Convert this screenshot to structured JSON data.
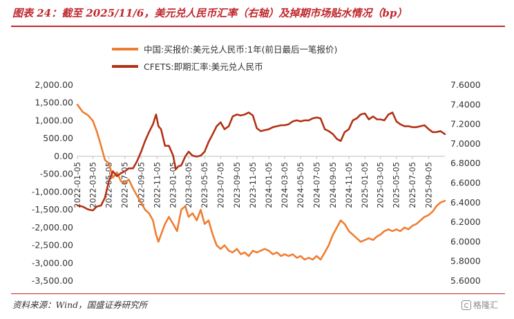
{
  "header": {
    "title": "图表 24：截至 2025/11/6，美元兑人民币汇率（右轴）及掉期市场贴水情况（bp）"
  },
  "footer": {
    "source": "资料来源：Wind，国盛证券研究所"
  },
  "watermark": {
    "text": "格隆汇"
  },
  "colors": {
    "accent": "#c0272d",
    "series_swap": "#ee7d31",
    "series_cfets": "#b23014"
  },
  "chart_data": {
    "type": "line",
    "legend_position": "top",
    "grid": false,
    "x_ticks": [
      "2022-01-05",
      "2022-03-05",
      "2022-05-05",
      "2022-07-05",
      "2022-09-05",
      "2022-11-05",
      "2023-01-05",
      "2023-03-05",
      "2023-05-05",
      "2023-07-05",
      "2023-09-05",
      "2023-11-05",
      "2024-01-05",
      "2024-03-05",
      "2024-05-05",
      "2024-07-05",
      "2024-09-05",
      "2024-11-05",
      "2025-01-05",
      "2025-03-05",
      "2025-05-05",
      "2025-07-05",
      "2025-09-05"
    ],
    "x_range": [
      "2022-01-05",
      "2025-11-06"
    ],
    "y_left": {
      "min": -3500,
      "max": 2000,
      "step": 500,
      "tick_labels": [
        "2,000.00",
        "1,500.00",
        "1,000.00",
        "500.00",
        "0.00",
        "-500.00",
        "-1,000.00",
        "-1,500.00",
        "-2,000.00",
        "-2,500.00",
        "-3,000.00",
        "-3,500.00"
      ]
    },
    "y_right": {
      "min": 5.6,
      "max": 7.6,
      "step": 0.2,
      "tick_labels": [
        "7.6000",
        "7.4000",
        "7.2000",
        "7.0000",
        "6.8000",
        "6.6000",
        "6.4000",
        "6.2000",
        "6.0000",
        "5.8000",
        "5.6000"
      ]
    },
    "series": [
      {
        "name": "中国:买报价:美元兑人民币:1年(前日最后一笔报价)",
        "axis": "left",
        "points": [
          [
            "2022-01-05",
            1450
          ],
          [
            "2022-01-25",
            1250
          ],
          [
            "2022-02-15",
            1150
          ],
          [
            "2022-03-05",
            1000
          ],
          [
            "2022-03-20",
            700
          ],
          [
            "2022-04-05",
            300
          ],
          [
            "2022-04-20",
            -100
          ],
          [
            "2022-05-05",
            -200
          ],
          [
            "2022-05-20",
            -600
          ],
          [
            "2022-06-05",
            -450
          ],
          [
            "2022-06-20",
            -700
          ],
          [
            "2022-07-05",
            -750
          ],
          [
            "2022-07-20",
            -650
          ],
          [
            "2022-08-05",
            -900
          ],
          [
            "2022-08-20",
            -1100
          ],
          [
            "2022-09-05",
            -1300
          ],
          [
            "2022-09-20",
            -1500
          ],
          [
            "2022-10-05",
            -1600
          ],
          [
            "2022-10-20",
            -1800
          ],
          [
            "2022-11-01",
            -2200
          ],
          [
            "2022-11-10",
            -2400
          ],
          [
            "2022-11-20",
            -2200
          ],
          [
            "2022-12-05",
            -1900
          ],
          [
            "2022-12-20",
            -1700
          ],
          [
            "2023-01-05",
            -1900
          ],
          [
            "2023-01-20",
            -2100
          ],
          [
            "2023-02-05",
            -1500
          ],
          [
            "2023-02-20",
            -1400
          ],
          [
            "2023-03-05",
            -1700
          ],
          [
            "2023-03-20",
            -1600
          ],
          [
            "2023-04-05",
            -1800
          ],
          [
            "2023-04-20",
            -1500
          ],
          [
            "2023-05-05",
            -1900
          ],
          [
            "2023-05-20",
            -1800
          ],
          [
            "2023-06-05",
            -2200
          ],
          [
            "2023-06-20",
            -2500
          ],
          [
            "2023-07-05",
            -2600
          ],
          [
            "2023-07-20",
            -2500
          ],
          [
            "2023-08-05",
            -2650
          ],
          [
            "2023-08-20",
            -2700
          ],
          [
            "2023-09-05",
            -2600
          ],
          [
            "2023-09-20",
            -2750
          ],
          [
            "2023-10-05",
            -2700
          ],
          [
            "2023-10-20",
            -2800
          ],
          [
            "2023-11-05",
            -2650
          ],
          [
            "2023-11-20",
            -2700
          ],
          [
            "2023-12-05",
            -2650
          ],
          [
            "2023-12-20",
            -2600
          ],
          [
            "2024-01-05",
            -2650
          ],
          [
            "2024-01-20",
            -2750
          ],
          [
            "2024-02-05",
            -2700
          ],
          [
            "2024-02-20",
            -2800
          ],
          [
            "2024-03-05",
            -2750
          ],
          [
            "2024-03-20",
            -2800
          ],
          [
            "2024-04-05",
            -2750
          ],
          [
            "2024-04-20",
            -2850
          ],
          [
            "2024-05-05",
            -2800
          ],
          [
            "2024-05-20",
            -2900
          ],
          [
            "2024-06-05",
            -2850
          ],
          [
            "2024-06-20",
            -2900
          ],
          [
            "2024-07-05",
            -2800
          ],
          [
            "2024-07-20",
            -2900
          ],
          [
            "2024-08-05",
            -2700
          ],
          [
            "2024-08-20",
            -2500
          ],
          [
            "2024-09-05",
            -2200
          ],
          [
            "2024-09-20",
            -2000
          ],
          [
            "2024-10-05",
            -1800
          ],
          [
            "2024-10-20",
            -1900
          ],
          [
            "2024-11-05",
            -2100
          ],
          [
            "2024-11-20",
            -2200
          ],
          [
            "2024-12-05",
            -2300
          ],
          [
            "2024-12-20",
            -2400
          ],
          [
            "2025-01-05",
            -2350
          ],
          [
            "2025-01-20",
            -2300
          ],
          [
            "2025-02-05",
            -2350
          ],
          [
            "2025-02-20",
            -2250
          ],
          [
            "2025-03-05",
            -2200
          ],
          [
            "2025-03-20",
            -2100
          ],
          [
            "2025-04-05",
            -2050
          ],
          [
            "2025-04-20",
            -2100
          ],
          [
            "2025-05-05",
            -2050
          ],
          [
            "2025-05-20",
            -2100
          ],
          [
            "2025-06-05",
            -2000
          ],
          [
            "2025-06-20",
            -2050
          ],
          [
            "2025-07-05",
            -1950
          ],
          [
            "2025-07-20",
            -1900
          ],
          [
            "2025-08-05",
            -1800
          ],
          [
            "2025-08-20",
            -1700
          ],
          [
            "2025-09-05",
            -1650
          ],
          [
            "2025-09-20",
            -1550
          ],
          [
            "2025-10-05",
            -1400
          ],
          [
            "2025-10-20",
            -1300
          ],
          [
            "2025-11-06",
            -1250
          ]
        ]
      },
      {
        "name": "CFETS:即期汇率:美元兑人民币",
        "axis": "right",
        "points": [
          [
            "2022-01-05",
            6.37
          ],
          [
            "2022-01-25",
            6.36
          ],
          [
            "2022-02-15",
            6.33
          ],
          [
            "2022-03-05",
            6.32
          ],
          [
            "2022-03-20",
            6.36
          ],
          [
            "2022-04-05",
            6.37
          ],
          [
            "2022-04-20",
            6.45
          ],
          [
            "2022-05-05",
            6.62
          ],
          [
            "2022-05-20",
            6.72
          ],
          [
            "2022-06-05",
            6.67
          ],
          [
            "2022-06-20",
            6.7
          ],
          [
            "2022-07-05",
            6.72
          ],
          [
            "2022-07-20",
            6.75
          ],
          [
            "2022-08-05",
            6.75
          ],
          [
            "2022-08-20",
            6.82
          ],
          [
            "2022-09-05",
            6.92
          ],
          [
            "2022-09-20",
            7.03
          ],
          [
            "2022-10-05",
            7.12
          ],
          [
            "2022-10-20",
            7.2
          ],
          [
            "2022-11-01",
            7.3
          ],
          [
            "2022-11-10",
            7.18
          ],
          [
            "2022-11-20",
            7.15
          ],
          [
            "2022-12-05",
            6.98
          ],
          [
            "2022-12-20",
            6.98
          ],
          [
            "2023-01-05",
            6.88
          ],
          [
            "2023-01-15",
            6.74
          ],
          [
            "2023-01-25",
            6.77
          ],
          [
            "2023-02-05",
            6.78
          ],
          [
            "2023-02-20",
            6.87
          ],
          [
            "2023-03-05",
            6.92
          ],
          [
            "2023-03-20",
            6.88
          ],
          [
            "2023-04-05",
            6.87
          ],
          [
            "2023-04-20",
            6.88
          ],
          [
            "2023-05-05",
            6.92
          ],
          [
            "2023-05-20",
            7.02
          ],
          [
            "2023-06-05",
            7.1
          ],
          [
            "2023-06-20",
            7.18
          ],
          [
            "2023-07-05",
            7.22
          ],
          [
            "2023-07-20",
            7.15
          ],
          [
            "2023-08-05",
            7.18
          ],
          [
            "2023-08-20",
            7.28
          ],
          [
            "2023-09-05",
            7.3
          ],
          [
            "2023-09-20",
            7.29
          ],
          [
            "2023-10-05",
            7.3
          ],
          [
            "2023-10-20",
            7.32
          ],
          [
            "2023-11-05",
            7.29
          ],
          [
            "2023-11-20",
            7.16
          ],
          [
            "2023-12-05",
            7.13
          ],
          [
            "2023-12-20",
            7.14
          ],
          [
            "2024-01-05",
            7.15
          ],
          [
            "2024-01-20",
            7.17
          ],
          [
            "2024-02-05",
            7.18
          ],
          [
            "2024-02-20",
            7.19
          ],
          [
            "2024-03-05",
            7.19
          ],
          [
            "2024-03-20",
            7.2
          ],
          [
            "2024-04-05",
            7.23
          ],
          [
            "2024-04-20",
            7.24
          ],
          [
            "2024-05-05",
            7.23
          ],
          [
            "2024-05-20",
            7.24
          ],
          [
            "2024-06-05",
            7.24
          ],
          [
            "2024-06-20",
            7.26
          ],
          [
            "2024-07-05",
            7.27
          ],
          [
            "2024-07-20",
            7.26
          ],
          [
            "2024-08-05",
            7.15
          ],
          [
            "2024-08-20",
            7.13
          ],
          [
            "2024-09-05",
            7.1
          ],
          [
            "2024-09-20",
            7.05
          ],
          [
            "2024-10-05",
            7.03
          ],
          [
            "2024-10-20",
            7.12
          ],
          [
            "2024-11-05",
            7.15
          ],
          [
            "2024-11-20",
            7.24
          ],
          [
            "2024-12-05",
            7.26
          ],
          [
            "2024-12-20",
            7.3
          ],
          [
            "2025-01-05",
            7.31
          ],
          [
            "2025-01-20",
            7.25
          ],
          [
            "2025-02-05",
            7.28
          ],
          [
            "2025-02-20",
            7.25
          ],
          [
            "2025-03-05",
            7.25
          ],
          [
            "2025-03-20",
            7.24
          ],
          [
            "2025-04-05",
            7.3
          ],
          [
            "2025-04-20",
            7.32
          ],
          [
            "2025-05-05",
            7.23
          ],
          [
            "2025-05-20",
            7.2
          ],
          [
            "2025-06-05",
            7.18
          ],
          [
            "2025-06-20",
            7.18
          ],
          [
            "2025-07-05",
            7.17
          ],
          [
            "2025-07-20",
            7.17
          ],
          [
            "2025-08-05",
            7.18
          ],
          [
            "2025-08-20",
            7.19
          ],
          [
            "2025-09-05",
            7.15
          ],
          [
            "2025-09-20",
            7.12
          ],
          [
            "2025-10-05",
            7.12
          ],
          [
            "2025-10-20",
            7.13
          ],
          [
            "2025-11-06",
            7.1
          ]
        ]
      }
    ]
  }
}
